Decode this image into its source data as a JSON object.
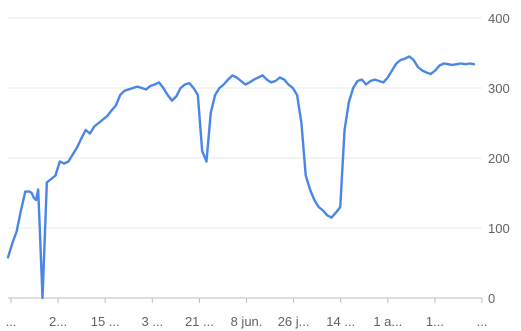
{
  "chart_data": {
    "type": "line",
    "title": "",
    "xlabel": "",
    "ylabel": "",
    "ylim": [
      0,
      400
    ],
    "y_ticks": [
      "0",
      "100",
      "200",
      "300",
      "400"
    ],
    "y_axis_side": "right",
    "grid": true,
    "legend": "none",
    "x_tick_labels": [
      "...",
      "2...",
      "15 ...",
      "3 ...",
      "21 ...",
      "8 jun.",
      "26 j...",
      "14 ...",
      "1 a...",
      "1...",
      "..."
    ],
    "series": [
      {
        "color": "#4a86e8",
        "x": [
          0,
          1,
          2,
          3,
          4,
          5,
          5.5,
          6,
          6.5,
          7,
          8,
          9,
          10,
          11,
          12,
          13,
          14,
          15,
          16,
          17,
          18,
          19,
          20,
          21,
          22,
          23,
          24,
          25,
          26,
          27,
          28,
          29,
          30,
          31,
          32,
          33,
          34,
          35,
          36,
          37,
          38,
          39,
          40,
          41,
          42,
          43,
          44,
          45,
          46,
          47,
          48,
          49,
          50,
          51,
          52,
          53,
          54,
          55,
          56,
          57,
          58,
          59,
          60,
          61,
          62,
          63,
          64,
          65,
          66,
          67,
          68,
          69,
          70,
          71,
          72,
          73,
          74,
          75,
          76,
          77,
          78,
          79,
          80,
          81,
          82,
          83,
          84,
          85,
          86,
          87,
          88,
          89,
          90,
          91,
          92,
          93,
          94,
          95,
          96,
          97,
          98,
          99,
          100,
          101,
          102,
          103,
          104,
          105,
          106,
          107,
          108
        ],
        "values": [
          58,
          78,
          95,
          125,
          152,
          152,
          150,
          143,
          140,
          155,
          0,
          165,
          170,
          175,
          195,
          192,
          195,
          205,
          215,
          228,
          240,
          235,
          245,
          250,
          255,
          260,
          268,
          275,
          290,
          296,
          298,
          300,
          302,
          300,
          298,
          303,
          305,
          308,
          300,
          290,
          282,
          288,
          300,
          305,
          307,
          300,
          290,
          210,
          195,
          265,
          290,
          300,
          305,
          312,
          318,
          315,
          310,
          305,
          308,
          312,
          315,
          318,
          312,
          308,
          310,
          315,
          312,
          305,
          300,
          290,
          250,
          175,
          155,
          140,
          130,
          125,
          118,
          115,
          122,
          130,
          240,
          280,
          300,
          310,
          312,
          305,
          310,
          312,
          310,
          308,
          315,
          325,
          335,
          340,
          342,
          345,
          340,
          330,
          325,
          322,
          320,
          325,
          332,
          335,
          334,
          333,
          334,
          335,
          334,
          335,
          334
        ]
      }
    ]
  }
}
